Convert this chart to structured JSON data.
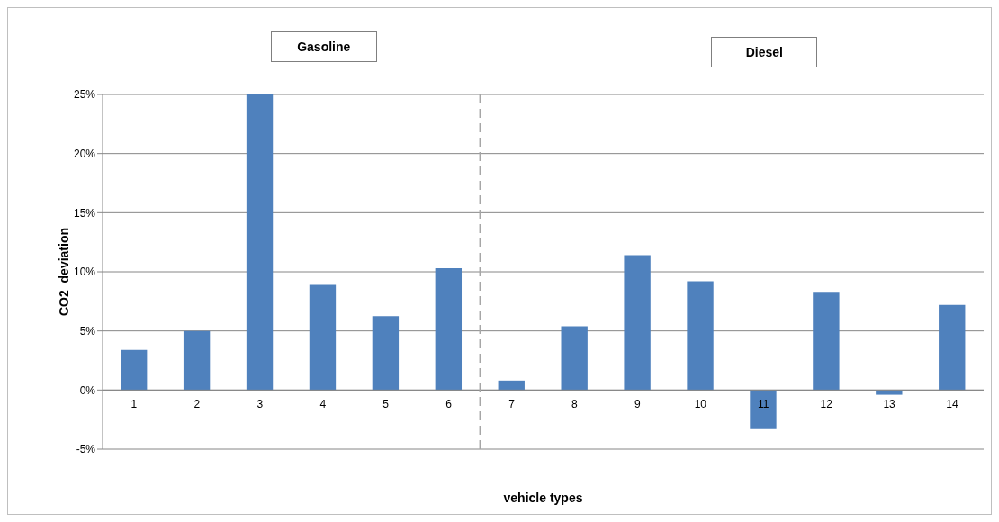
{
  "chart_data": {
    "type": "bar",
    "xlabel": "vehicle types",
    "ylabel": "CO2  deviation",
    "x": [
      1,
      2,
      3,
      4,
      5,
      6,
      7,
      8,
      9,
      10,
      11,
      12,
      13,
      14
    ],
    "values": [
      3.4,
      5.0,
      25.0,
      8.9,
      6.25,
      10.3,
      0.8,
      5.4,
      11.4,
      9.2,
      -3.3,
      8.3,
      -0.4,
      7.2
    ],
    "color": "#4f81bd",
    "xlim": [
      0.5,
      14.5
    ],
    "xticks": [
      1,
      2,
      3,
      4,
      5,
      6,
      7,
      8,
      9,
      10,
      11,
      12,
      13,
      14
    ],
    "ylim": [
      -5,
      25
    ],
    "yticks": [
      {
        "value": -5,
        "label": "-5%"
      },
      {
        "value": 0,
        "label": "0%"
      },
      {
        "value": 5,
        "label": "5%"
      },
      {
        "value": 10,
        "label": "10%"
      },
      {
        "value": 15,
        "label": "15%"
      },
      {
        "value": 20,
        "label": "20%"
      },
      {
        "value": 25,
        "label": "25%"
      }
    ],
    "grid": "y",
    "legend": false,
    "ref_lines": [
      {
        "axis": "x",
        "value": 6.5,
        "color": "#a6a6a6",
        "line_style": "dashed"
      }
    ],
    "annotations": [
      "Gasoline",
      "Diesel"
    ]
  }
}
